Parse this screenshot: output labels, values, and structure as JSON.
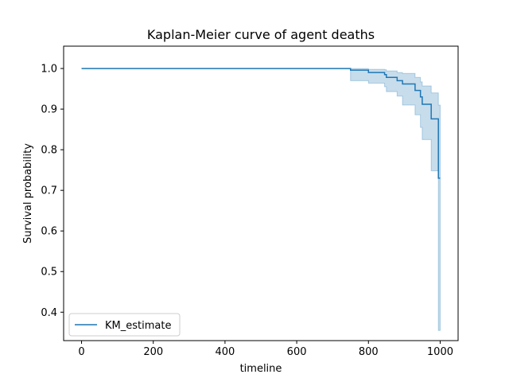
{
  "chart_data": {
    "type": "line",
    "title": "Kaplan-Meier curve of agent deaths",
    "xlabel": "timeline",
    "ylabel": "Survival probability",
    "xlim": [
      -50,
      1050
    ],
    "ylim": [
      0.33,
      1.055
    ],
    "xticks": [
      0,
      200,
      400,
      600,
      800,
      1000
    ],
    "yticks": [
      0.4,
      0.5,
      0.6,
      0.7,
      0.8,
      0.9,
      1.0
    ],
    "xtick_labels": [
      "0",
      "200",
      "400",
      "600",
      "800",
      "1000"
    ],
    "ytick_labels": [
      "0.4",
      "0.5",
      "0.6",
      "0.7",
      "0.8",
      "0.9",
      "1.0"
    ],
    "grid": false,
    "legend": {
      "position": "lower-left",
      "entries": [
        "KM_estimate"
      ]
    },
    "series": [
      {
        "name": "KM_estimate",
        "color": "#1f77b4",
        "ci_color": "#1f77b4",
        "steps": [
          {
            "t": 0,
            "s": 1.0,
            "lo": 1.0,
            "hi": 1.0
          },
          {
            "t": 750,
            "s": 0.996,
            "lo": 0.97,
            "hi": 1.0
          },
          {
            "t": 800,
            "s": 0.99,
            "lo": 0.964,
            "hi": 0.998
          },
          {
            "t": 845,
            "s": 0.985,
            "lo": 0.955,
            "hi": 0.997
          },
          {
            "t": 850,
            "s": 0.978,
            "lo": 0.943,
            "hi": 0.994
          },
          {
            "t": 880,
            "s": 0.97,
            "lo": 0.932,
            "hi": 0.99
          },
          {
            "t": 895,
            "s": 0.962,
            "lo": 0.91,
            "hi": 0.988
          },
          {
            "t": 930,
            "s": 0.946,
            "lo": 0.886,
            "hi": 0.978
          },
          {
            "t": 945,
            "s": 0.93,
            "lo": 0.855,
            "hi": 0.967
          },
          {
            "t": 950,
            "s": 0.912,
            "lo": 0.825,
            "hi": 0.957
          },
          {
            "t": 975,
            "s": 0.876,
            "lo": 0.748,
            "hi": 0.94
          },
          {
            "t": 995,
            "s": 0.73,
            "lo": 0.355,
            "hi": 0.91
          }
        ],
        "end_t": 1000
      }
    ]
  }
}
